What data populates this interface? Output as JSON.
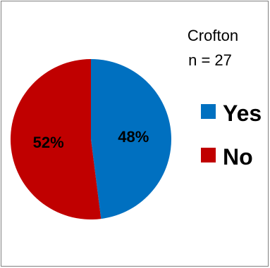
{
  "chart_data": {
    "type": "pie",
    "title": "Crofton",
    "subtitle": "n = 27",
    "slices": [
      {
        "name": "Yes",
        "value": 48,
        "label": "48%",
        "color": "#0070C0"
      },
      {
        "name": "No",
        "value": 52,
        "label": "52%",
        "color": "#C00000"
      }
    ],
    "start_angle_deg": 0,
    "direction": "clockwise",
    "legend_position": "right"
  }
}
